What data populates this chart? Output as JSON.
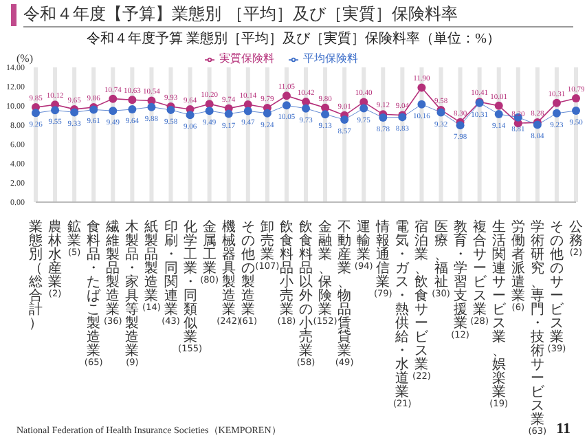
{
  "chart_data": {
    "type": "line",
    "title": "令和４年度【予算】業態別 ［平均］及び［実質］保険料率",
    "subtitle": "令和４年度予算 業態別［平均］及び［実質］保険料率（単位：%）",
    "ylabel": "(%)",
    "categories": [
      "業態別（総合計）",
      "農林水産業(2)",
      "鉱業(5)",
      "食料品・たばこ製造業(65)",
      "繊維製品製造業(36)",
      "木製品・家具等製造業(9)",
      "紙製品製造業(14)",
      "印刷・同関連業(43)",
      "化学工業・同類似業(155)",
      "金属工業(80)",
      "機械器具製造業(242)",
      "その他の製造業(61)",
      "卸売業(107)",
      "飲食料品小売業(18)",
      "飲食料品以外の小売業(58)",
      "金融業、保険業(152)",
      "不動産業、物品賃貸業(49)",
      "運輸業(94)",
      "情報通信業(79)",
      "電気・ガス・熱供給・水道業(21)",
      "宿泊業、飲食サービス業(22)",
      "医療、福祉(30)",
      "教育・学習支援業(12)",
      "複合サービス業(28)",
      "生活関連サービス業、娯楽業(19)",
      "労働者派遣業(6)",
      "学術研究、専門・技術サービス業(63)",
      "その他のサービス業(39)",
      "公務(2)"
    ],
    "series": [
      {
        "name": "実質保険料",
        "color": "#b5307a",
        "values": [
          9.85,
          10.12,
          9.65,
          9.86,
          10.74,
          10.63,
          10.54,
          9.93,
          9.64,
          10.2,
          9.74,
          10.14,
          9.79,
          11.05,
          10.42,
          9.8,
          9.01,
          10.4,
          9.12,
          9.04,
          11.9,
          9.58,
          8.3,
          10.41,
          10.01,
          8.2,
          8.28,
          10.31,
          10.79
        ],
        "value_labels": [
          "9.85",
          "10.12",
          "9.65",
          "9.86",
          "10.74",
          "10.63",
          "10.54",
          "9.93",
          "9.64",
          "10.20",
          "9.74",
          "10.14",
          "9.79",
          "11.05",
          "10.42",
          "9.80",
          "9.01",
          "10.40",
          "9.12",
          "9.04",
          "11.90",
          "9.58",
          "8.30",
          "10.41",
          "10.01",
          "8.20",
          "8.28",
          "10.31",
          "10.79"
        ]
      },
      {
        "name": "平均保険料",
        "color": "#3a6cc8",
        "values": [
          9.26,
          9.55,
          9.33,
          9.61,
          9.49,
          9.64,
          9.88,
          9.58,
          9.06,
          9.49,
          9.17,
          9.47,
          9.24,
          10.05,
          9.73,
          9.13,
          8.57,
          9.75,
          8.78,
          8.83,
          10.16,
          9.32,
          7.98,
          10.31,
          9.14,
          8.81,
          8.04,
          9.23,
          9.5
        ],
        "value_labels": [
          "9.26",
          "9.55",
          "9.33",
          "9.61",
          "9.49",
          "9.64",
          "9.88",
          "9.58",
          "9.06",
          "9.49",
          "9.17",
          "9.47",
          "9.24",
          "10.05",
          "9.73",
          "9.13",
          "8.57",
          "9.75",
          "8.78",
          "8.83",
          "10.16",
          "9.32",
          "7.98",
          "10.31",
          "9.14",
          "8.81",
          "8.04",
          "9.23",
          "9.50"
        ]
      }
    ],
    "ylim": [
      0,
      14
    ],
    "yticks": [
      {
        "value": 0,
        "label": "0.00"
      },
      {
        "value": 2,
        "label": "2.00"
      },
      {
        "value": 4,
        "label": "4.00"
      },
      {
        "value": 6,
        "label": "6.00"
      },
      {
        "value": 8,
        "label": "8.00"
      },
      {
        "value": 10,
        "label": "10.00"
      },
      {
        "value": 12,
        "label": "12.00"
      },
      {
        "value": 14,
        "label": "14.00"
      }
    ],
    "grid": "x",
    "legend": "top",
    "marker": "circle",
    "data_labels": true,
    "annotations": [
      "National Federation of Health Insurance Societies（KEMPOREN）",
      "11"
    ]
  }
}
